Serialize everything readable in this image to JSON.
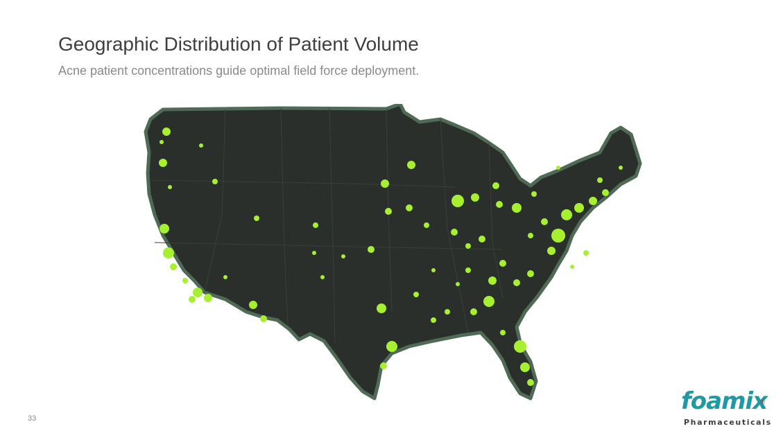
{
  "slide": {
    "title": "Geographic Distribution of Patient Volume",
    "subtitle": "Acne patient concentrations guide optimal field force deployment.",
    "page_number": "33"
  },
  "logo": {
    "wordmark": "foamix",
    "registered": "®",
    "tagline": "Pharmaceuticals",
    "color": "#1f9aa5"
  },
  "map": {
    "region": "Contiguous United States",
    "land_color": "#2b2f2b",
    "border_color": "#4f6a55",
    "dot_color": "#a6f030"
  }
}
